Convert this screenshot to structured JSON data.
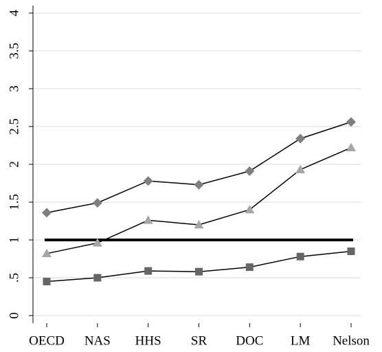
{
  "chart_data": {
    "type": "line",
    "categories": [
      "OECD",
      "NAS",
      "HHS",
      "SR",
      "DOC",
      "LM",
      "Nelson"
    ],
    "series": [
      {
        "color": "#7f7f7f",
        "marker": "diamond",
        "values": [
          1.36,
          1.49,
          1.78,
          1.73,
          1.91,
          2.34,
          2.56
        ]
      },
      {
        "color": "#a6a6a6",
        "marker": "triangle",
        "values": [
          0.82,
          0.96,
          1.26,
          1.2,
          1.4,
          1.93,
          2.22
        ]
      },
      {
        "color": "#666666",
        "marker": "square",
        "values": [
          0.45,
          0.5,
          0.59,
          0.58,
          0.64,
          0.78,
          0.85
        ]
      }
    ],
    "line_color": "#000000",
    "reference_line": 1,
    "ylim": [
      -0.1,
      4.1
    ],
    "yticks": [
      0,
      {
        "value": 0.5,
        "label": ".5"
      },
      1,
      1.5,
      2,
      2.5,
      3,
      3.5,
      4
    ],
    "grid": true
  }
}
